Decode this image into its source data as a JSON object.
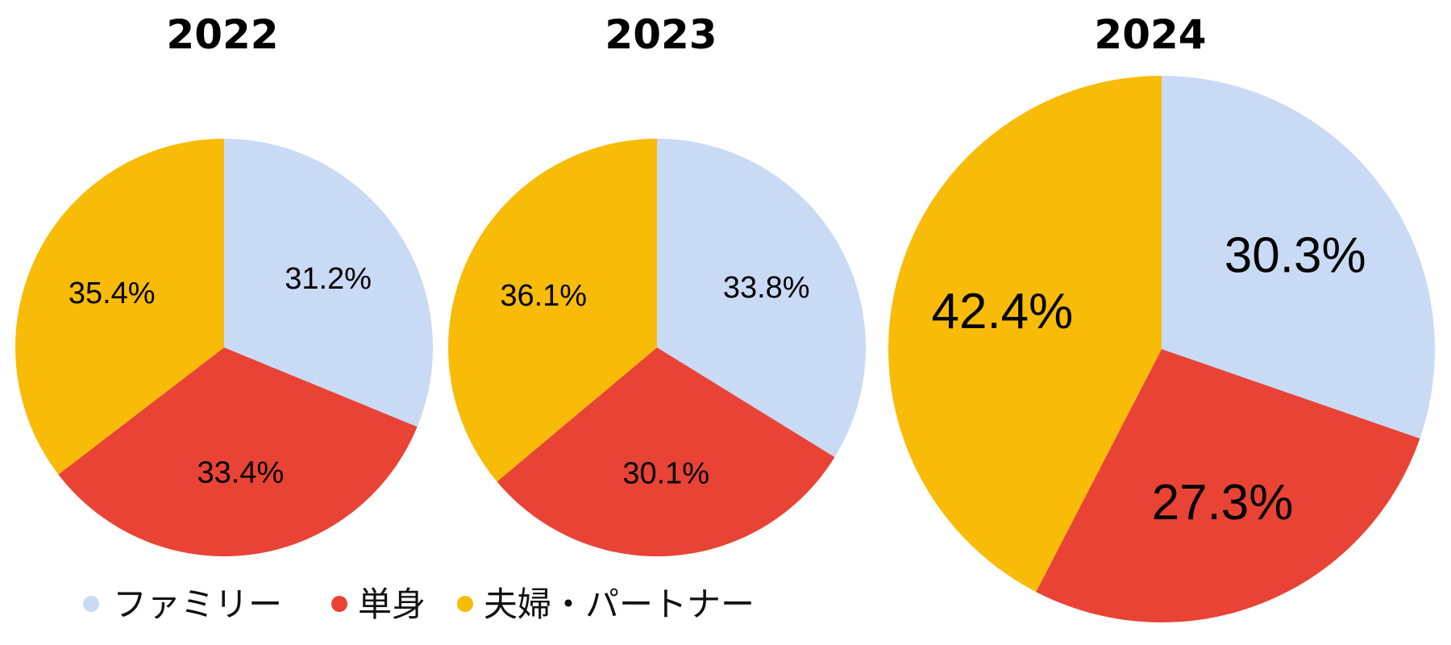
{
  "chart_data": [
    {
      "type": "pie",
      "title": "2022",
      "categories": [
        "ファミリー",
        "単身",
        "夫婦・パートナー"
      ],
      "values": [
        31.2,
        33.4,
        35.4
      ],
      "labels": [
        "31.2%",
        "33.4%",
        "35.4%"
      ],
      "unit": "%"
    },
    {
      "type": "pie",
      "title": "2023",
      "categories": [
        "ファミリー",
        "単身",
        "夫婦・パートナー"
      ],
      "values": [
        33.8,
        30.1,
        36.1
      ],
      "labels": [
        "33.8%",
        "30.1%",
        "36.1%"
      ],
      "unit": "%"
    },
    {
      "type": "pie",
      "title": "2024",
      "categories": [
        "ファミリー",
        "単身",
        "夫婦・パートナー"
      ],
      "values": [
        30.3,
        27.3,
        42.4
      ],
      "labels": [
        "30.3%",
        "27.3%",
        "42.4%"
      ],
      "unit": "%"
    }
  ],
  "legend": {
    "placement": "bottom-left",
    "items": [
      {
        "label": "ファミリー",
        "color": "#c9daf5"
      },
      {
        "label": "単身",
        "color": "#e94335"
      },
      {
        "label": "夫婦・パートナー",
        "color": "#f8bb07"
      }
    ]
  },
  "colors": {
    "family": "#c9daf5",
    "single": "#e94335",
    "couple": "#f8bb07"
  }
}
